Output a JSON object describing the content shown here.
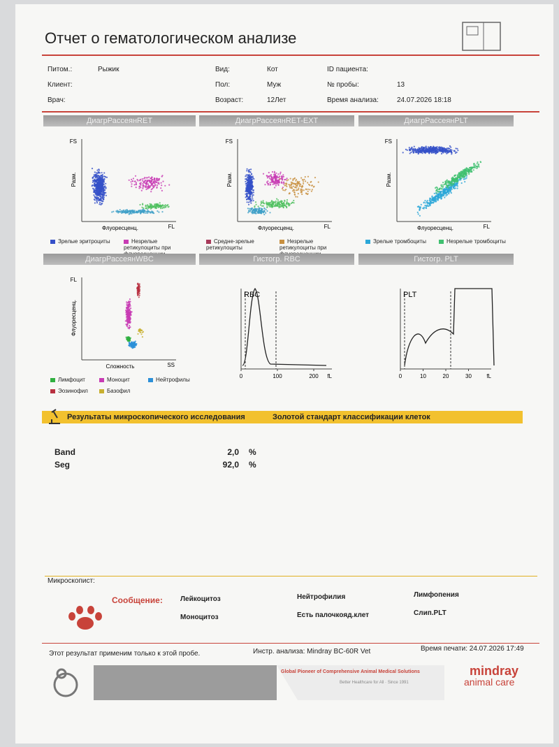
{
  "header": {
    "title": "Отчет о гематологическом анализе"
  },
  "patient": [
    {
      "label": "Питом.:",
      "value": "Рыжик"
    },
    {
      "label": "Вид:",
      "value": "Кот"
    },
    {
      "label": "ID пациента:"
    },
    {
      "label": "Клиент:"
    },
    {
      "label": "Пол:",
      "value": "Муж"
    },
    {
      "label": "№ пробы:",
      "value": "13"
    },
    {
      "label": "Врач:"
    },
    {
      "label": "Возраст:",
      "value": "12Лет"
    },
    {
      "label": "Время анализа:",
      "value": "24.07.2026 18:18"
    }
  ],
  "scatter_plots": [
    {
      "title": "ДиагрРассеянRET",
      "y_axis": "FS",
      "y_label": "Разм.",
      "x_label": "Флуоресценц.",
      "x_end": "FL",
      "legend": [
        {
          "name": "Зрелые эритроциты",
          "color": "#3550c8"
        },
        {
          "name": "Незрелые ретикулоциты при флуоресценции",
          "color": "#c83cb4"
        }
      ]
    },
    {
      "title": "ДиагрРассеянRET-EXT",
      "y_axis": "FS",
      "y_label": "Разм.",
      "x_label": "Флуоресценц.",
      "x_end": "FL",
      "legend": [
        {
          "name": "Средне-зрелые ретикулоциты",
          "color": "#a83a5a"
        },
        {
          "name": "Незрелые ретикулоциты при флуоресценции",
          "color": "#c89040"
        }
      ]
    },
    {
      "title": "ДиагрРассеянPLT",
      "y_axis": "FS",
      "y_label": "Разм.",
      "x_label": "Флуоресценц.",
      "x_end": "FL",
      "legend": [
        {
          "name": "Зрелые тромбоциты",
          "color": "#2ca8d8"
        },
        {
          "name": "Незрелые тромбоциты",
          "color": "#40c070"
        }
      ]
    },
    {
      "title": "ДиагрРассеянWBC",
      "y_axis": "FL",
      "y_label": "Флуоресценц.",
      "x_label": "Сложность",
      "x_end": "SS",
      "legend": [
        {
          "name": "Лимфоцит",
          "color": "#30b040"
        },
        {
          "name": "Моноцит",
          "color": "#c83cb4"
        },
        {
          "name": "Нейтрофилы",
          "color": "#2c90d8"
        },
        {
          "name": "Эозинофил",
          "color": "#b83040"
        },
        {
          "name": "Базофил",
          "color": "#c8b030"
        }
      ]
    }
  ],
  "histograms": [
    {
      "title": "Гистогр. RBC",
      "label": "RBC",
      "xlim": [
        0,
        250
      ],
      "xticks": [
        0,
        100,
        200
      ],
      "x_end": "fL"
    },
    {
      "title": "Гистогр. PLT",
      "label": "PLT",
      "xlim": [
        0,
        40
      ],
      "xticks": [
        0,
        10,
        20,
        30
      ],
      "x_end": "fL"
    }
  ],
  "microscopy": {
    "title": "Результаты микроскопического исследования",
    "subtitle": "Золотой стандарт классификации клеток",
    "rows": [
      {
        "name": "Band",
        "value": "2,0",
        "unit": "%"
      },
      {
        "name": "Seg",
        "value": "92,0",
        "unit": "%"
      }
    ],
    "microscopist": "Микроскопист:"
  },
  "message": {
    "label": "Сообщение:",
    "items": [
      "Лейкоцитоз",
      "Нейтрофилия",
      "Лимфопения",
      "Моноцитоз",
      "Есть палочкояд.клет",
      "Слип.PLT"
    ]
  },
  "footer": {
    "note": "Этот результат применим только к этой пробе.",
    "instrument": "Инстр. анализа: Mindray BC-60R Vet",
    "print_time": "Время печати: 24.07.2026 17:49",
    "slogan": "Global Pioneer of Comprehensive Animal Medical Solutions",
    "tagline": "Better Healthcare for All · Since 1991",
    "brand": "mindray",
    "brand_sub": "animal care"
  }
}
